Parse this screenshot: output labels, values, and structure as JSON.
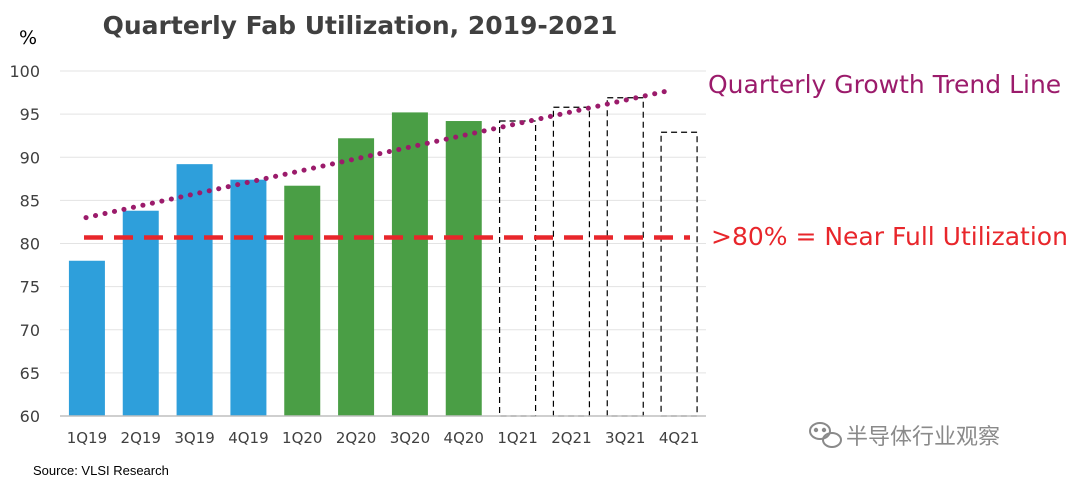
{
  "chart_data": {
    "type": "bar",
    "title": "Quarterly Fab Utilization, 2019-2021",
    "ylabel": "%",
    "ylim": [
      60,
      100
    ],
    "yticks": [
      60,
      65,
      70,
      75,
      80,
      85,
      90,
      95,
      100
    ],
    "grid": true,
    "categories": [
      "1Q19",
      "2Q19",
      "3Q19",
      "4Q19",
      "1Q20",
      "2Q20",
      "3Q20",
      "4Q20",
      "1Q21",
      "2Q21",
      "3Q21",
      "4Q21"
    ],
    "values": [
      78,
      83.8,
      89.2,
      87.4,
      86.7,
      92.2,
      95.2,
      94.2,
      94.2,
      95.8,
      96.9,
      92.9
    ],
    "bar_styles": [
      "blue",
      "blue",
      "blue",
      "blue",
      "green",
      "green",
      "green",
      "green",
      "forecast",
      "forecast",
      "forecast",
      "forecast"
    ],
    "trend_line": {
      "label": "Quarterly Growth Trend Line",
      "start": 83.0,
      "end": 97.7,
      "color": "#9b1b6b"
    },
    "threshold_line": {
      "label": ">80% = Near Full Utilization",
      "value": 80.7,
      "color": "#e8262b"
    },
    "colors": {
      "blue": "#2e9fdb",
      "green": "#4a9e45",
      "forecast": "#000000",
      "axis": "#bfbfbf",
      "grid": "#e3e3e3"
    }
  },
  "source": "Source: VLSI Research",
  "watermark": "半导体行业观察"
}
